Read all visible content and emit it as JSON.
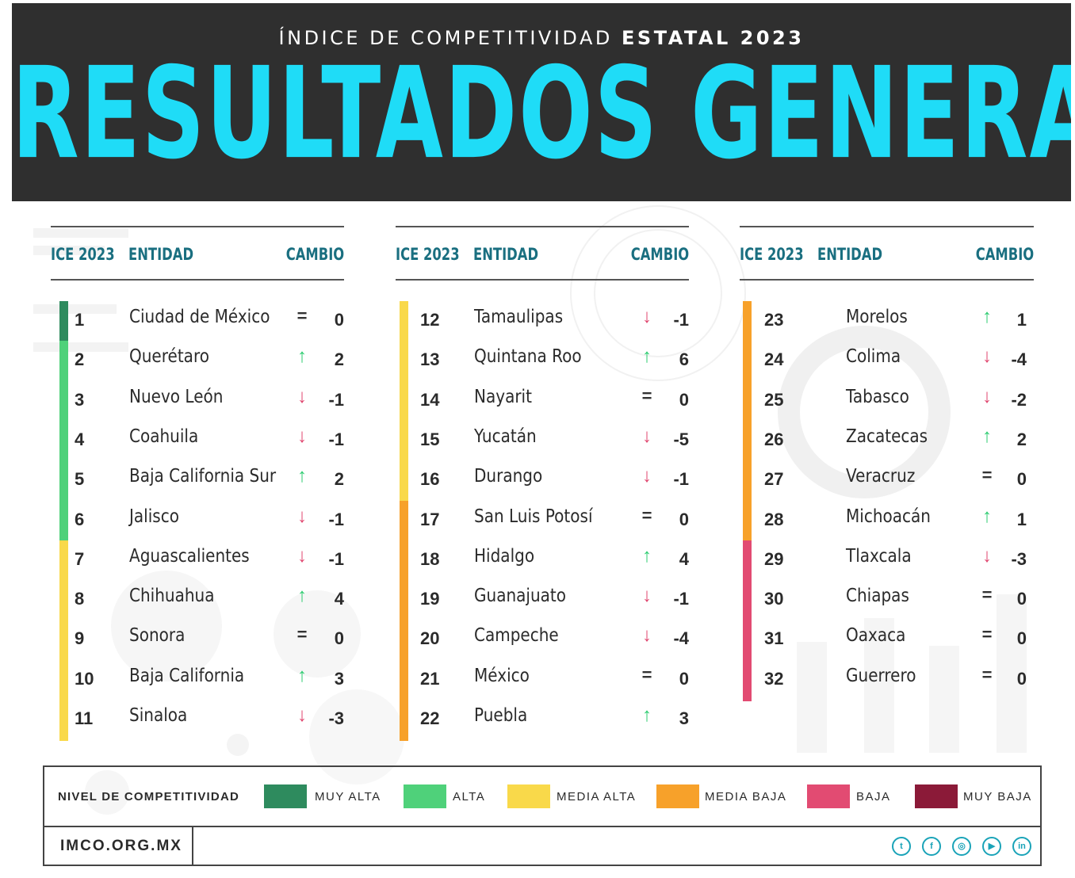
{
  "header": {
    "subtitle_light": "ÍNDICE DE COMPETITIVIDAD",
    "subtitle_bold": "ESTATAL 2023",
    "title": "RESULTADOS GENERALES"
  },
  "columns_header": {
    "rank": "ICE 2023",
    "entity": "ENTIDAD",
    "change": "CAMBIO"
  },
  "colors": {
    "muy_alta": "#2e8b5e",
    "alta": "#4fd17a",
    "media_alta": "#f9d94a",
    "media_baja": "#f7a12a",
    "baja": "#e24b72",
    "muy_baja": "#8b1a38",
    "up": "#2ecc71",
    "down": "#e0456e",
    "accent": "#1fdcf7"
  },
  "rows": [
    {
      "rank": "1",
      "entity": "Ciudad de México",
      "dir": "eq",
      "change": "0",
      "level": "muy_alta"
    },
    {
      "rank": "2",
      "entity": "Querétaro",
      "dir": "up",
      "change": "2",
      "level": "alta"
    },
    {
      "rank": "3",
      "entity": "Nuevo León",
      "dir": "down",
      "change": "-1",
      "level": "alta"
    },
    {
      "rank": "4",
      "entity": "Coahuila",
      "dir": "down",
      "change": "-1",
      "level": "alta"
    },
    {
      "rank": "5",
      "entity": "Baja California Sur",
      "dir": "up",
      "change": "2",
      "level": "alta"
    },
    {
      "rank": "6",
      "entity": "Jalisco",
      "dir": "down",
      "change": "-1",
      "level": "alta"
    },
    {
      "rank": "7",
      "entity": "Aguascalientes",
      "dir": "down",
      "change": "-1",
      "level": "media_alta"
    },
    {
      "rank": "8",
      "entity": "Chihuahua",
      "dir": "up",
      "change": "4",
      "level": "media_alta"
    },
    {
      "rank": "9",
      "entity": "Sonora",
      "dir": "eq",
      "change": "0",
      "level": "media_alta"
    },
    {
      "rank": "10",
      "entity": "Baja California",
      "dir": "up",
      "change": "3",
      "level": "media_alta"
    },
    {
      "rank": "11",
      "entity": "Sinaloa",
      "dir": "down",
      "change": "-3",
      "level": "media_alta"
    },
    {
      "rank": "12",
      "entity": "Tamaulipas",
      "dir": "down",
      "change": "-1",
      "level": "media_alta"
    },
    {
      "rank": "13",
      "entity": "Quintana Roo",
      "dir": "up",
      "change": "6",
      "level": "media_alta"
    },
    {
      "rank": "14",
      "entity": "Nayarit",
      "dir": "eq",
      "change": "0",
      "level": "media_alta"
    },
    {
      "rank": "15",
      "entity": "Yucatán",
      "dir": "down",
      "change": "-5",
      "level": "media_alta"
    },
    {
      "rank": "16",
      "entity": "Durango",
      "dir": "down",
      "change": "-1",
      "level": "media_alta"
    },
    {
      "rank": "17",
      "entity": "San Luis Potosí",
      "dir": "eq",
      "change": "0",
      "level": "media_baja"
    },
    {
      "rank": "18",
      "entity": "Hidalgo",
      "dir": "up",
      "change": "4",
      "level": "media_baja"
    },
    {
      "rank": "19",
      "entity": "Guanajuato",
      "dir": "down",
      "change": "-1",
      "level": "media_baja"
    },
    {
      "rank": "20",
      "entity": "Campeche",
      "dir": "down",
      "change": "-4",
      "level": "media_baja"
    },
    {
      "rank": "21",
      "entity": "México",
      "dir": "eq",
      "change": "0",
      "level": "media_baja"
    },
    {
      "rank": "22",
      "entity": "Puebla",
      "dir": "up",
      "change": "3",
      "level": "media_baja"
    },
    {
      "rank": "23",
      "entity": "Morelos",
      "dir": "up",
      "change": "1",
      "level": "media_baja"
    },
    {
      "rank": "24",
      "entity": "Colima",
      "dir": "down",
      "change": "-4",
      "level": "media_baja"
    },
    {
      "rank": "25",
      "entity": "Tabasco",
      "dir": "down",
      "change": "-2",
      "level": "media_baja"
    },
    {
      "rank": "26",
      "entity": "Zacatecas",
      "dir": "up",
      "change": "2",
      "level": "media_baja"
    },
    {
      "rank": "27",
      "entity": "Veracruz",
      "dir": "eq",
      "change": "0",
      "level": "media_baja"
    },
    {
      "rank": "28",
      "entity": "Michoacán",
      "dir": "up",
      "change": "1",
      "level": "media_baja"
    },
    {
      "rank": "29",
      "entity": "Tlaxcala",
      "dir": "down",
      "change": "-3",
      "level": "baja"
    },
    {
      "rank": "30",
      "entity": "Chiapas",
      "dir": "eq",
      "change": "0",
      "level": "baja"
    },
    {
      "rank": "31",
      "entity": "Oaxaca",
      "dir": "eq",
      "change": "0",
      "level": "baja"
    },
    {
      "rank": "32",
      "entity": "Guerrero",
      "dir": "eq",
      "change": "0",
      "level": "baja"
    }
  ],
  "legend": {
    "title": "NIVEL DE COMPETITIVIDAD",
    "items": [
      {
        "key": "muy_alta",
        "label": "MUY ALTA"
      },
      {
        "key": "alta",
        "label": "ALTA"
      },
      {
        "key": "media_alta",
        "label": "MEDIA ALTA"
      },
      {
        "key": "media_baja",
        "label": "MEDIA BAJA"
      },
      {
        "key": "baja",
        "label": "BAJA"
      },
      {
        "key": "muy_baja",
        "label": "MUY BAJA"
      }
    ]
  },
  "footer": {
    "site": "IMCO.ORG.MX",
    "social_icons": [
      "twitter-icon",
      "facebook-icon",
      "instagram-icon",
      "youtube-icon",
      "linkedin-icon"
    ]
  }
}
